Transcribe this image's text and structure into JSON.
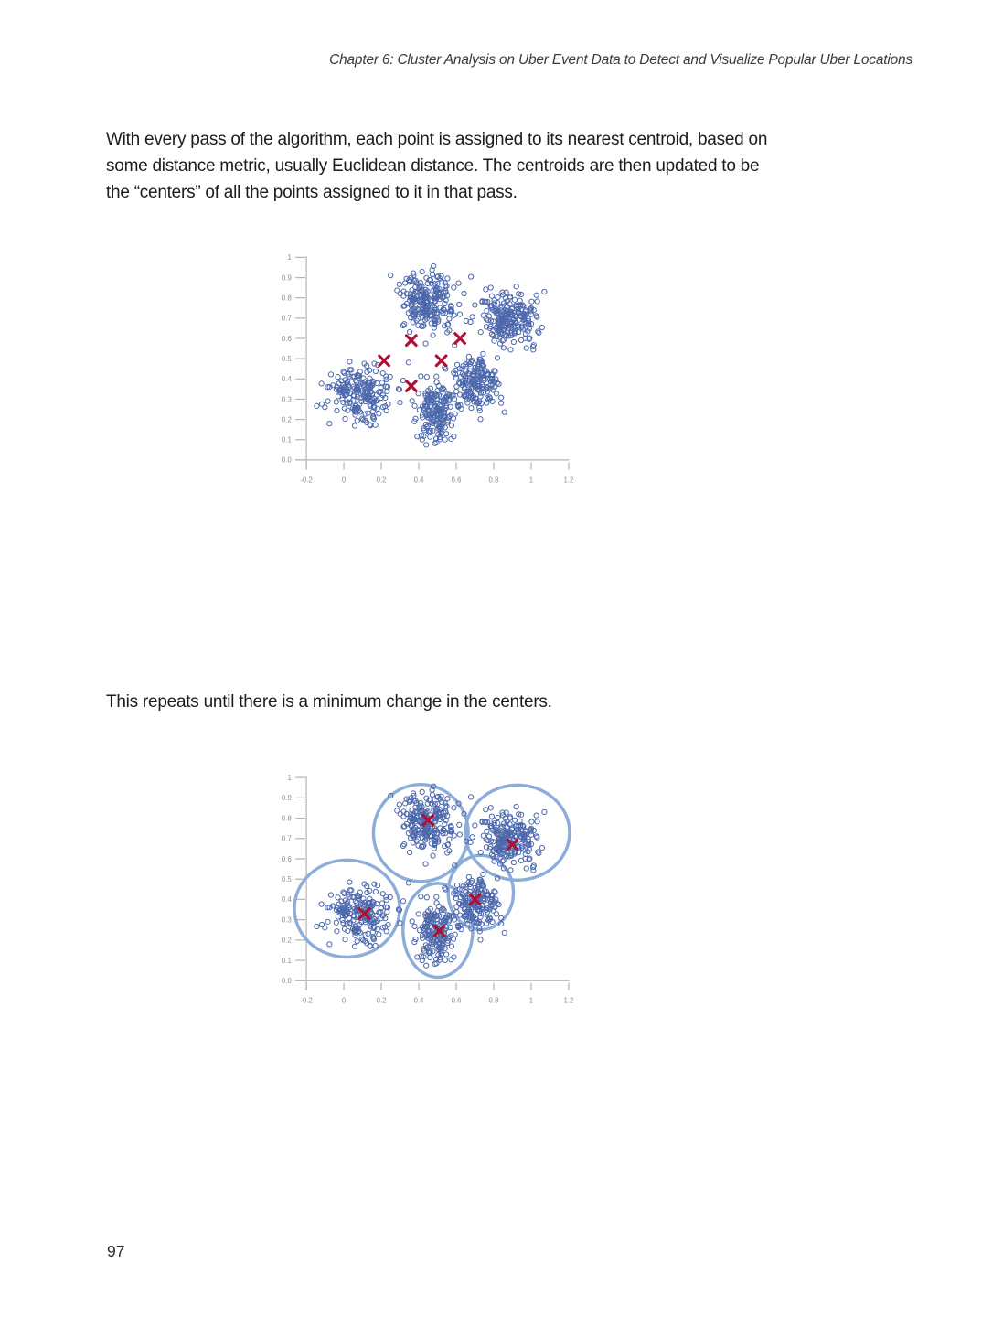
{
  "page": {
    "header": "Chapter 6: Cluster Analysis on Uber Event Data to Detect and Visualize Popular Uber Locations",
    "paragraph1_lines": [
      "With every pass of the algorithm, each point is assigned to its nearest centroid, based on",
      "some distance metric, usually Euclidean distance. The centroids are then updated to be",
      "the “centers” of all the points assigned to it in that pass."
    ],
    "paragraph2": "This repeats until there is a minimum change in the centers.",
    "page_number": "97"
  },
  "colors": {
    "point": "#4c68ac",
    "centroid": "#ad1034",
    "ring": "#8cadda",
    "axis": "#b6b6b6",
    "tick_label": "#8f8f8f"
  },
  "chart_data": [
    {
      "type": "scatter",
      "title": "",
      "xlabel": "",
      "ylabel": "",
      "xlim": [
        -0.2,
        1.2
      ],
      "ylim": [
        0,
        1
      ],
      "grid": false,
      "legend": "none",
      "x_tick_values": [
        -0.2,
        0,
        0.2,
        0.4,
        0.6,
        0.8,
        1,
        1.2
      ],
      "x_tick_labels": [
        "-0.2",
        "0",
        "0.2",
        "0.4",
        "0.6",
        "0.8",
        "1",
        "1.2"
      ],
      "y_tick_values": [
        0,
        0.1,
        0.2,
        0.3,
        0.4,
        0.5,
        0.6,
        0.7,
        0.8,
        0.9,
        1
      ],
      "y_tick_labels": [
        "0.0",
        "0.1",
        "0.2",
        "0.3",
        "0.4",
        "0.5",
        "0.6",
        "0.7",
        "0.8",
        "0.9",
        "1"
      ],
      "description": "K-means pass: data points (open blue circles) with centroids (red X) still between clusters",
      "clusters": [
        {
          "name": "left",
          "center": [
            0.09,
            0.325
          ],
          "sigma": [
            0.09,
            0.065
          ],
          "n": 210
        },
        {
          "name": "top-middle",
          "center": [
            0.45,
            0.775
          ],
          "sigma": [
            0.07,
            0.07
          ],
          "n": 240
        },
        {
          "name": "top-right",
          "center": [
            0.88,
            0.69
          ],
          "sigma": [
            0.08,
            0.068
          ],
          "n": 220
        },
        {
          "name": "mid-right",
          "center": [
            0.7,
            0.375
          ],
          "sigma": [
            0.065,
            0.065
          ],
          "n": 180
        },
        {
          "name": "bottom",
          "center": [
            0.5,
            0.23
          ],
          "sigma": [
            0.055,
            0.075
          ],
          "n": 170
        }
      ],
      "centroids": [
        [
          0.36,
          0.59
        ],
        [
          0.62,
          0.6
        ],
        [
          0.215,
          0.49
        ],
        [
          0.52,
          0.49
        ],
        [
          0.36,
          0.365
        ]
      ],
      "rings": []
    },
    {
      "type": "scatter",
      "title": "",
      "xlabel": "",
      "ylabel": "",
      "xlim": [
        -0.2,
        1.2
      ],
      "ylim": [
        0,
        1
      ],
      "grid": false,
      "legend": "none",
      "x_tick_values": [
        -0.2,
        0,
        0.2,
        0.4,
        0.6,
        0.8,
        1,
        1.2
      ],
      "x_tick_labels": [
        "-0.2",
        "0",
        "0.2",
        "0.4",
        "0.6",
        "0.8",
        "1",
        "1.2"
      ],
      "y_tick_values": [
        0,
        0.1,
        0.2,
        0.3,
        0.4,
        0.5,
        0.6,
        0.7,
        0.8,
        0.9,
        1
      ],
      "y_tick_labels": [
        "0.0",
        "0.1",
        "0.2",
        "0.3",
        "0.4",
        "0.5",
        "0.6",
        "0.7",
        "0.8",
        "0.9",
        "1"
      ],
      "description": "Converged k-means: centroids (red X) at cluster centers with cluster boundary circles",
      "clusters": [
        {
          "name": "left",
          "center": [
            0.09,
            0.325
          ],
          "sigma": [
            0.09,
            0.065
          ],
          "n": 210
        },
        {
          "name": "top-middle",
          "center": [
            0.45,
            0.775
          ],
          "sigma": [
            0.07,
            0.07
          ],
          "n": 240
        },
        {
          "name": "top-right",
          "center": [
            0.88,
            0.69
          ],
          "sigma": [
            0.08,
            0.068
          ],
          "n": 220
        },
        {
          "name": "mid-right",
          "center": [
            0.7,
            0.375
          ],
          "sigma": [
            0.065,
            0.065
          ],
          "n": 180
        },
        {
          "name": "bottom",
          "center": [
            0.5,
            0.23
          ],
          "sigma": [
            0.055,
            0.075
          ],
          "n": 170
        }
      ],
      "centroids": [
        [
          0.11,
          0.33
        ],
        [
          0.45,
          0.79
        ],
        [
          0.9,
          0.67
        ],
        [
          0.7,
          0.4
        ],
        [
          0.51,
          0.245
        ]
      ],
      "rings": [
        {
          "cx": 0.017,
          "cy": 0.355,
          "rx": 0.281,
          "ry": 0.239
        },
        {
          "cx": 0.411,
          "cy": 0.727,
          "rx": 0.253,
          "ry": 0.239
        },
        {
          "cx": 0.927,
          "cy": 0.729,
          "rx": 0.278,
          "ry": 0.234
        },
        {
          "cx": 0.731,
          "cy": 0.434,
          "rx": 0.174,
          "ry": 0.183
        },
        {
          "cx": 0.502,
          "cy": 0.248,
          "rx": 0.186,
          "ry": 0.231
        }
      ]
    }
  ]
}
